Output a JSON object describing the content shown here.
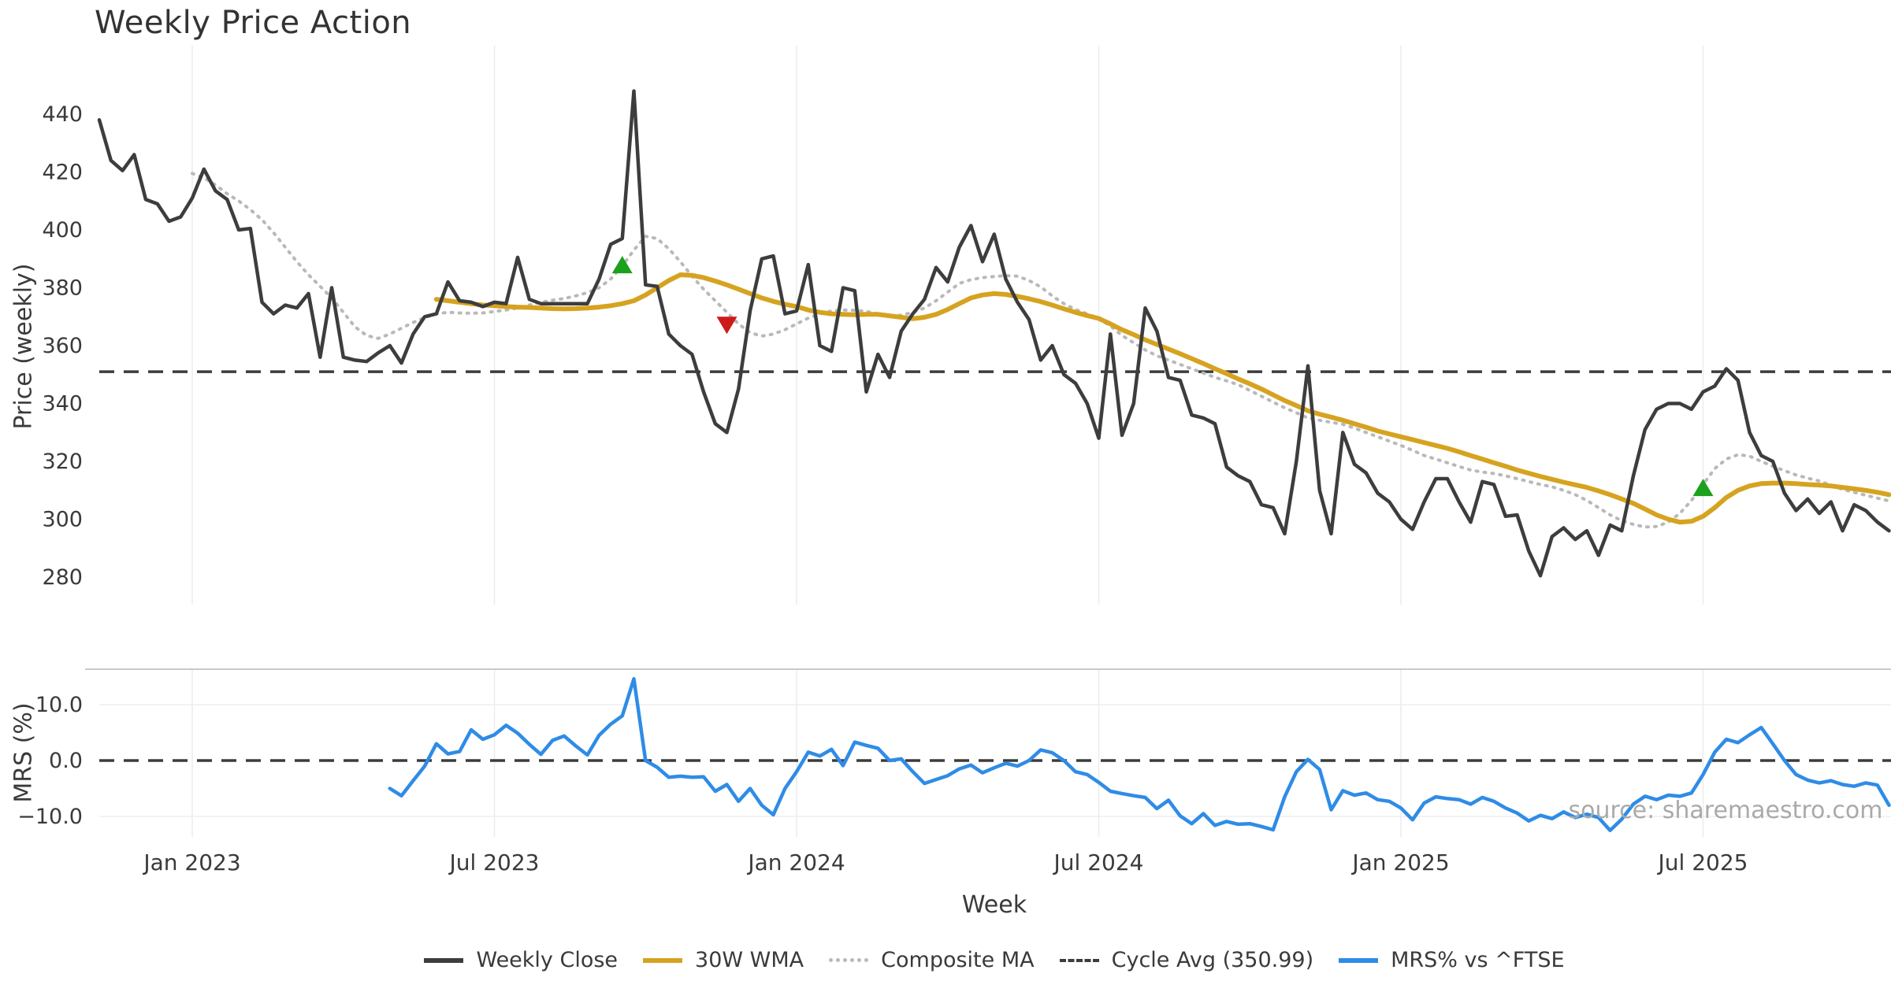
{
  "figure": {
    "title": "Weekly Price Action",
    "source": "source: sharemaestro.com"
  },
  "axes": {
    "main_ylabel": "Price (weekly)",
    "lower_ylabel": "MRS (%)",
    "xlabel": "Week"
  },
  "legend": {
    "items": [
      {
        "label": "Weekly Close",
        "type": "solid-dark"
      },
      {
        "label": "30W WMA",
        "type": "solid-gold"
      },
      {
        "label": "Composite MA",
        "type": "dotted-gray"
      },
      {
        "label": "Cycle Avg (350.99)",
        "type": "dashed-dark"
      },
      {
        "label": "MRS% vs ^FTSE",
        "type": "solid-blue"
      }
    ]
  },
  "colors": {
    "close": "#3d3d3d",
    "wma": "#d6a320",
    "composite": "#b9b9b9",
    "cycle": "#3c3c3c",
    "mrs": "#2f8ce6",
    "marker_up": "#1ca11c",
    "marker_down": "#cf1a1a",
    "grid": "#ededf1",
    "spine": "#c9c9c9",
    "text": "#3a3a3a",
    "muted": "#aaaaaa"
  },
  "chart_data": {
    "type": "line",
    "title": "Weekly Price Action",
    "x_unit": "week_index",
    "x_ticks": [
      {
        "week": 8,
        "label": "Jan 2023"
      },
      {
        "week": 34,
        "label": "Jul 2023"
      },
      {
        "week": 60,
        "label": "Jan 2024"
      },
      {
        "week": 86,
        "label": "Jul 2024"
      },
      {
        "week": 112,
        "label": "Jan 2025"
      },
      {
        "week": 138,
        "label": "Jul 2025"
      }
    ],
    "main_panel": {
      "ylabel": "Price (weekly)",
      "ylim": [
        270,
        463
      ],
      "grid": "vertical-only",
      "yticks": [
        {
          "value": 440,
          "label": "440"
        },
        {
          "value": 420,
          "label": "420"
        },
        {
          "value": 400,
          "label": "400"
        },
        {
          "value": 380,
          "label": "380"
        },
        {
          "value": 360,
          "label": "360"
        },
        {
          "value": 340,
          "label": "340"
        },
        {
          "value": 320,
          "label": "320"
        },
        {
          "value": 300,
          "label": "300"
        },
        {
          "value": 280,
          "label": "280"
        }
      ],
      "cycle_avg": 350.99,
      "markers": [
        {
          "week": 45,
          "value": 388,
          "type": "up"
        },
        {
          "week": 54,
          "value": 367,
          "type": "down"
        },
        {
          "week": 138,
          "value": 311,
          "type": "up"
        }
      ],
      "series": [
        {
          "name": "Weekly Close",
          "start_week": 0,
          "values": [
            438,
            424,
            420.5,
            426,
            410.5,
            409,
            403,
            404.5,
            411,
            421,
            413.5,
            410.5,
            400,
            400.5,
            375,
            371,
            374,
            373,
            378,
            356,
            380,
            356,
            355,
            354.5,
            357.5,
            360,
            354,
            364,
            370,
            371,
            382,
            375.5,
            375,
            373.5,
            375,
            374.5,
            390.5,
            376,
            374.5,
            374.5,
            374.5,
            374.5,
            374.5,
            383,
            395,
            397,
            448,
            381,
            380.5,
            364,
            360,
            357,
            344,
            333,
            330,
            345,
            372,
            390,
            391,
            371,
            372,
            388,
            360,
            358,
            380,
            379,
            344,
            357,
            349,
            365,
            371,
            376,
            387,
            382,
            394,
            401.5,
            389,
            398.5,
            383,
            375,
            369,
            355,
            360,
            350,
            347,
            340,
            328,
            364,
            329,
            340,
            373,
            365,
            349,
            348,
            336,
            335,
            333,
            318,
            315,
            313,
            305,
            304,
            295,
            320,
            353,
            310,
            295,
            330,
            319,
            316,
            309,
            306,
            300,
            296.5,
            306,
            314,
            314,
            306,
            299,
            313,
            312,
            301,
            301.5,
            289,
            280.5,
            294,
            297,
            293,
            296,
            287.5,
            298,
            296,
            315,
            331,
            338,
            340,
            340,
            338,
            344,
            346,
            352,
            348,
            330,
            322,
            320,
            309,
            303,
            307,
            302,
            306,
            296,
            305,
            303,
            299,
            296
          ]
        },
        {
          "name": "30W WMA",
          "start_week": 29,
          "values": [
            376,
            375.5,
            375,
            374.5,
            374,
            373.8,
            373.5,
            373.3,
            373.2,
            373,
            372.8,
            372.7,
            372.8,
            373,
            373.3,
            373.8,
            374.5,
            375.5,
            377.5,
            380,
            382.5,
            384.5,
            384.3,
            383.5,
            382.3,
            381,
            379.5,
            378,
            376.5,
            375.3,
            374.3,
            373.5,
            372.3,
            371.5,
            371,
            370.8,
            370.7,
            370.8,
            370.8,
            370.3,
            369.8,
            369.3,
            369.8,
            370.8,
            372.5,
            374.5,
            376.5,
            377.5,
            378,
            377.7,
            377,
            376.2,
            375.2,
            374,
            372.7,
            371.5,
            370.4,
            369.4,
            367.5,
            365.5,
            363.8,
            362,
            360.4,
            358.8,
            357.2,
            355.5,
            353.8,
            352,
            350.3,
            348.5,
            346.8,
            345,
            343,
            341,
            339.3,
            337.5,
            336.3,
            335.3,
            334.2,
            333,
            331.8,
            330.5,
            329.5,
            328.5,
            327.5,
            326.5,
            325.5,
            324.5,
            323.3,
            322,
            320.8,
            319.5,
            318.3,
            317,
            315.9,
            314.8,
            313.8,
            312.8,
            311.9,
            311,
            309.8,
            308.5,
            307,
            305.5,
            303.5,
            301.5,
            300,
            299,
            299.3,
            301,
            304,
            307.5,
            310,
            311.5,
            312.3,
            312.5,
            312.5,
            312.3,
            312,
            311.8,
            311.5,
            311,
            310.5,
            310,
            309.3,
            308.5
          ]
        },
        {
          "name": "Composite MA",
          "start_week": 8,
          "values": [
            419.5,
            418,
            415.5,
            412.5,
            410,
            407,
            403.5,
            399,
            394,
            389,
            384.5,
            380.5,
            376.5,
            371.5,
            366.5,
            363.5,
            362.5,
            364,
            366,
            368,
            369.7,
            371,
            371.5,
            371.3,
            371.2,
            371.3,
            371.8,
            372.3,
            373,
            374,
            375,
            375.7,
            376.3,
            377.2,
            378.3,
            380,
            383,
            387.5,
            393,
            397.8,
            397,
            393.5,
            389,
            384,
            379.5,
            375.5,
            371.5,
            367.5,
            364.5,
            363.3,
            364,
            365.5,
            367.5,
            369.5,
            371,
            372,
            372.3,
            372.2,
            371.8,
            371,
            370.3,
            370.5,
            371.5,
            373,
            375.5,
            378.5,
            381.5,
            382.8,
            383.5,
            383.9,
            384.2,
            384,
            382.5,
            380.3,
            377.2,
            374.5,
            372.5,
            371,
            369.3,
            366.8,
            363.5,
            361,
            358.5,
            356.5,
            355,
            353.5,
            352,
            350.5,
            349,
            347.8,
            346.5,
            344.5,
            342.5,
            340.5,
            338.5,
            336.8,
            335,
            334.2,
            333.5,
            332.8,
            331.5,
            330,
            328.5,
            327,
            325.5,
            323.8,
            322,
            320.8,
            319.5,
            318.2,
            317,
            316.3,
            315.8,
            315,
            314,
            313,
            312,
            311.2,
            310,
            308.5,
            306.5,
            304,
            301.5,
            299.5,
            298.2,
            297.3,
            297.5,
            299,
            302,
            306.5,
            312,
            317.5,
            320.8,
            322.3,
            321.8,
            320,
            318.3,
            316.8,
            315.3,
            314.2,
            313.2,
            311.8,
            310.3,
            309.3,
            308.3,
            307.3,
            306.3
          ]
        }
      ]
    },
    "lower_panel": {
      "ylabel": "MRS (%)",
      "ylim": [
        -14,
        16.5
      ],
      "zero_line": 0.0,
      "yticks": [
        {
          "value": 10,
          "label": "10.0"
        },
        {
          "value": 0,
          "label": "0.0"
        },
        {
          "value": -10,
          "label": "−10.0"
        }
      ],
      "series": [
        {
          "name": "MRS% vs ^FTSE",
          "start_week": 25,
          "values": [
            -5.0,
            -6.3,
            -3.6,
            -1.0,
            3.0,
            1.2,
            1.6,
            5.5,
            3.8,
            4.6,
            6.3,
            4.9,
            2.9,
            1.1,
            3.6,
            4.4,
            2.6,
            1.0,
            4.5,
            6.5,
            8.0,
            14.6,
            0.0,
            -1.2,
            -3.0,
            -2.8,
            -3.0,
            -2.9,
            -5.5,
            -4.3,
            -7.3,
            -5.0,
            -8.0,
            -9.7,
            -5.0,
            -2.0,
            1.5,
            0.8,
            2.0,
            -0.9,
            3.3,
            2.7,
            2.2,
            0.0,
            0.3,
            -2.0,
            -4.1,
            -3.4,
            -2.7,
            -1.5,
            -0.8,
            -2.2,
            -1.3,
            -0.5,
            -1.0,
            0.0,
            1.9,
            1.4,
            0.0,
            -2.0,
            -2.5,
            -3.9,
            -5.5,
            -5.9,
            -6.3,
            -6.6,
            -8.6,
            -7.1,
            -9.9,
            -11.3,
            -9.5,
            -11.6,
            -10.9,
            -11.4,
            -11.3,
            -11.8,
            -12.4,
            -6.5,
            -2.0,
            0.2,
            -1.6,
            -8.8,
            -5.4,
            -6.2,
            -5.8,
            -7.0,
            -7.3,
            -8.5,
            -10.6,
            -7.6,
            -6.5,
            -6.8,
            -7.0,
            -7.8,
            -6.6,
            -7.3,
            -8.5,
            -9.4,
            -10.8,
            -9.8,
            -10.4,
            -9.2,
            -10.2,
            -9.6,
            -10.2,
            -12.5,
            -10.5,
            -7.8,
            -6.4,
            -7.0,
            -6.2,
            -6.4,
            -5.8,
            -2.5,
            1.5,
            3.8,
            3.2,
            4.6,
            5.9,
            3.0,
            0.0,
            -2.5,
            -3.5,
            -4.0,
            -3.6,
            -4.3,
            -4.6,
            -4.0,
            -4.4,
            -8.0
          ]
        }
      ]
    }
  }
}
